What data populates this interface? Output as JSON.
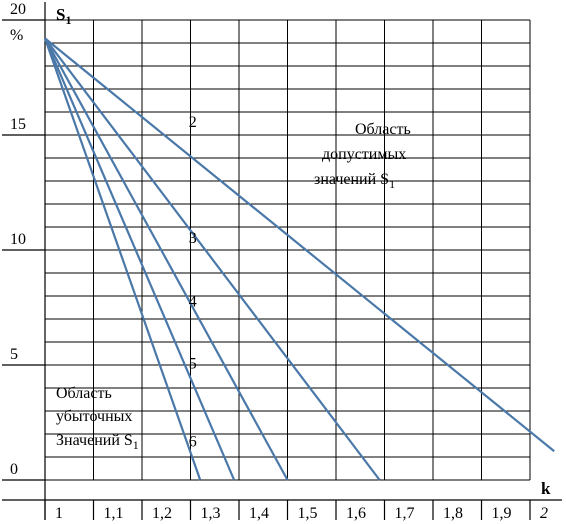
{
  "chart_data": {
    "type": "line",
    "xlabel": "k",
    "ylabel": "S",
    "ylabel_sub": "1",
    "yunit": "%",
    "xlim": [
      1,
      2
    ],
    "ylim": [
      0,
      20
    ],
    "x_tick_labels": [
      "1",
      "1,1",
      "1,2",
      "1,3",
      "1,4",
      "1,5",
      "1,6",
      "1,7",
      "1,8",
      "1,9",
      "2"
    ],
    "y_tick_labels": [
      "0",
      "5",
      "10",
      "15",
      "20"
    ],
    "grid": true,
    "series": [
      {
        "name": "2",
        "x": [
          1.0,
          2.05
        ],
        "y": [
          19.2,
          1.25
        ]
      },
      {
        "name": "3",
        "x": [
          1.0,
          1.69
        ],
        "y": [
          19.2,
          0.0
        ]
      },
      {
        "name": "4",
        "x": [
          1.0,
          1.5
        ],
        "y": [
          19.2,
          0.0
        ]
      },
      {
        "name": "5",
        "x": [
          1.0,
          1.39
        ],
        "y": [
          19.2,
          0.0
        ]
      },
      {
        "name": "6",
        "x": [
          1.0,
          1.32
        ],
        "y": [
          19.2,
          0.0
        ]
      }
    ],
    "annotations": {
      "allowed_region": [
        "Область",
        "допустимых",
        "значений S",
        "1"
      ],
      "loss_region": [
        "Область",
        "убыточных",
        "Значений S",
        "1"
      ]
    }
  }
}
